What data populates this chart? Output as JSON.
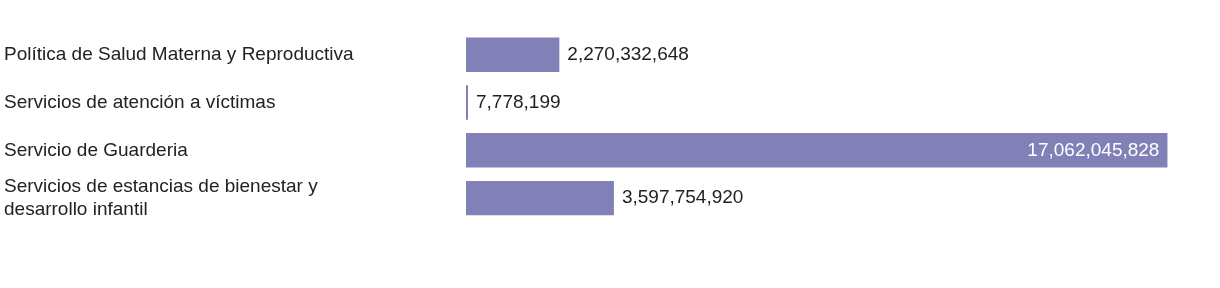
{
  "chart_data": {
    "type": "bar",
    "orientation": "horizontal",
    "categories": [
      "Política de Salud Materna y Reproductiva",
      "Servicios de atención a víctimas",
      "Servicio de Guarderia",
      "Servicios de estancias de bienestar y desarrollo infantil"
    ],
    "values": [
      2270332648,
      7778199,
      17062045828,
      3597754920
    ],
    "value_labels": [
      "2,270,332,648",
      "7,778,199",
      "17,062,045,828",
      "3,597,754,920"
    ],
    "color": "#8181b7",
    "grid": false,
    "legend": false
  }
}
